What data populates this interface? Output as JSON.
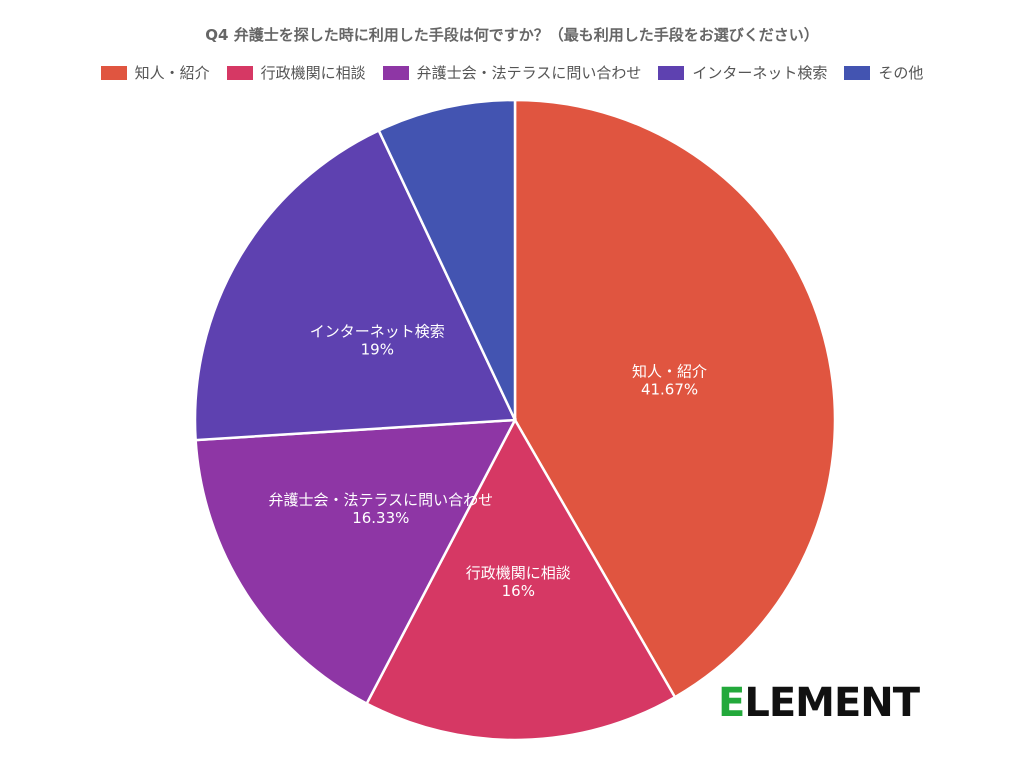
{
  "chart_data": {
    "type": "pie",
    "title": "Q4 弁護士を探した時に利用した手段は何ですか？（最も利用した手段をお選びください）",
    "legend_position": "top",
    "slices": [
      {
        "label": "知人・紹介",
        "value": 41.67,
        "value_label": "41.67%",
        "color": "#e05540"
      },
      {
        "label": "行政機関に相談",
        "value": 16,
        "value_label": "16%",
        "color": "#d63864"
      },
      {
        "label": "弁護士会・法テラスに問い合わせ",
        "value": 16.33,
        "value_label": "16.33%",
        "color": "#8e36a5"
      },
      {
        "label": "インターネット検索",
        "value": 19,
        "value_label": "19%",
        "color": "#5e41b0"
      },
      {
        "label": "その他",
        "value": 7,
        "value_label": "",
        "color": "#4354b1"
      }
    ]
  },
  "brand": {
    "first_letter": "E",
    "rest": "LEMENT",
    "accent_color": "#23a93b"
  }
}
